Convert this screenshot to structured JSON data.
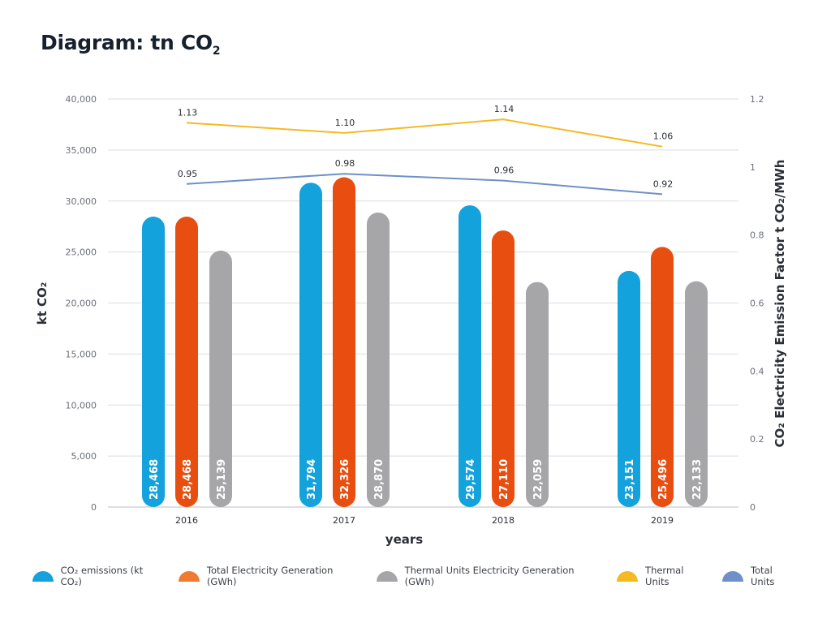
{
  "page": {
    "title": "Diagram: tn CO",
    "title_sub": "2"
  },
  "chart_data": {
    "type": "bar",
    "categories": [
      "2016",
      "2017",
      "2018",
      "2019"
    ],
    "xlabel": "years",
    "ylabel": "kt CO₂",
    "y2label": "CO₂ Electricity Emission Factor t CO₂/MWh",
    "ylim": [
      0,
      40000
    ],
    "y2lim": [
      0,
      1.2
    ],
    "yticks": [
      "0",
      "5,000",
      "10,000",
      "15,000",
      "20,000",
      "25,000",
      "30,000",
      "35,000",
      "40,000"
    ],
    "y2ticks": [
      "0",
      "0.2",
      "0.4",
      "0.6",
      "0.8",
      "1",
      "1.2"
    ],
    "grid": true,
    "legend_position": "bottom",
    "series": [
      {
        "name": "CO₂ emissions  (kt CO₂)",
        "axis": "left",
        "kind": "bar",
        "color": "#14a2dc",
        "values": [
          28468,
          31794,
          29574,
          23151
        ],
        "labels": [
          "28,468",
          "31,794",
          "29,574",
          "23,151"
        ]
      },
      {
        "name": "Total Electricity Generation (GWh)",
        "axis": "left",
        "kind": "bar",
        "color": "#e84e0f",
        "legend_color": "#f07a32",
        "values": [
          28468,
          32326,
          27110,
          25496
        ],
        "labels": [
          "28,468",
          "32,326",
          "27,110",
          "25,496"
        ]
      },
      {
        "name": "Thermal Units Electricity Generation (GWh)",
        "axis": "left",
        "kind": "bar",
        "color": "#a6a6a9",
        "values": [
          25139,
          28870,
          22059,
          22133
        ],
        "labels": [
          "25,139",
          "28,870",
          "22,059",
          "22,133"
        ]
      },
      {
        "name": "Thermal Units",
        "axis": "right",
        "kind": "line",
        "color": "#f5b922",
        "values": [
          1.13,
          1.1,
          1.14,
          1.06
        ],
        "labels": [
          "1.13",
          "1.10",
          "1.14",
          "1.06"
        ]
      },
      {
        "name": "Total Units",
        "axis": "right",
        "kind": "line",
        "color": "#6f8fca",
        "values": [
          0.95,
          0.98,
          0.96,
          0.92
        ],
        "labels": [
          "0.95",
          "0.98",
          "0.96",
          "0.92"
        ]
      }
    ]
  }
}
